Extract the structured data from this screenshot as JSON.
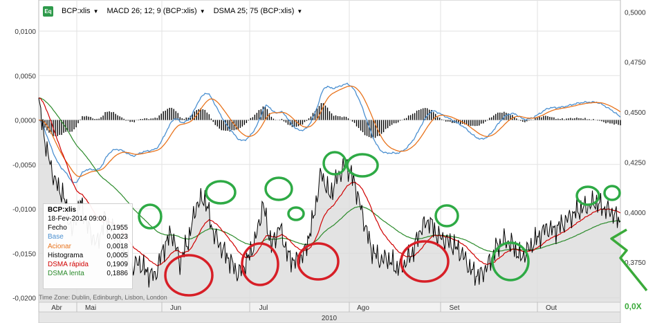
{
  "toolbar": {
    "logo": "Eq",
    "items": [
      {
        "label": "BCP:xlis"
      },
      {
        "label": "MACD 26; 12; 9 (BCP:xlis)"
      },
      {
        "label": "DSMA 25; 75 (BCP:xlis)"
      }
    ]
  },
  "legend": {
    "title": "BCP:xlis",
    "date": "18-Fev-2014 09:00",
    "rows": [
      {
        "label": "Fecho",
        "value": "0,1955",
        "color": "#000000"
      },
      {
        "label": "Base",
        "value": "0,0023",
        "color": "#4a8fd0"
      },
      {
        "label": "Acionar",
        "value": "0,0018",
        "color": "#e8731c"
      },
      {
        "label": "Histograma",
        "value": "0,0005",
        "color": "#000000"
      },
      {
        "label": "DSMA rápida",
        "value": "0,1909",
        "color": "#d00000"
      },
      {
        "label": "DSMA lenta",
        "value": "0,1886",
        "color": "#2a8a2a"
      }
    ]
  },
  "timezone": "Time Zone: Dublin, Edinburgh, Lisbon, London",
  "annotation": "0,0X",
  "chart_data": {
    "type": "line",
    "left_axis": {
      "ticks": [
        "0,0100",
        "0,0050",
        "0,0000",
        "-0,0050",
        "-0,0100",
        "-0,0150",
        "-0,0200"
      ],
      "ylim": [
        -0.0205,
        0.0135
      ]
    },
    "right_axis": {
      "ticks": [
        "0,5000",
        "0,4750",
        "0,4500",
        "0,4250",
        "0,4000",
        "0,3750"
      ],
      "ylim": [
        0.355,
        0.506
      ]
    },
    "x_axis": {
      "months": [
        "Abr",
        "Mai",
        "Jun",
        "Jul",
        "Ago",
        "Set",
        "Out"
      ],
      "year": "2010"
    },
    "series_price": {
      "name": "Fecho",
      "points": [
        [
          0.0,
          0.455
        ],
        [
          0.02,
          0.43
        ],
        [
          0.04,
          0.415
        ],
        [
          0.06,
          0.408
        ],
        [
          0.08,
          0.39
        ],
        [
          0.1,
          0.405
        ],
        [
          0.12,
          0.392
        ],
        [
          0.14,
          0.384
        ],
        [
          0.16,
          0.397
        ],
        [
          0.18,
          0.39
        ],
        [
          0.2,
          0.381
        ],
        [
          0.22,
          0.372
        ],
        [
          0.24,
          0.375
        ],
        [
          0.26,
          0.37
        ],
        [
          0.28,
          0.368
        ],
        [
          0.3,
          0.382
        ],
        [
          0.32,
          0.39
        ],
        [
          0.34,
          0.375
        ],
        [
          0.36,
          0.386
        ],
        [
          0.38,
          0.404
        ],
        [
          0.4,
          0.407
        ],
        [
          0.42,
          0.39
        ],
        [
          0.44,
          0.382
        ],
        [
          0.46,
          0.376
        ],
        [
          0.48,
          0.369
        ],
        [
          0.5,
          0.375
        ],
        [
          0.52,
          0.385
        ],
        [
          0.54,
          0.404
        ],
        [
          0.56,
          0.383
        ],
        [
          0.58,
          0.393
        ],
        [
          0.6,
          0.378
        ],
        [
          0.62,
          0.375
        ],
        [
          0.64,
          0.38
        ],
        [
          0.66,
          0.396
        ],
        [
          0.68,
          0.42
        ],
        [
          0.7,
          0.408
        ],
        [
          0.72,
          0.418
        ],
        [
          0.74,
          0.424
        ],
        [
          0.76,
          0.415
        ],
        [
          0.78,
          0.398
        ],
        [
          0.8,
          0.382
        ],
        [
          0.82,
          0.376
        ],
        [
          0.84,
          0.377
        ],
        [
          0.86,
          0.372
        ],
        [
          0.88,
          0.374
        ],
        [
          0.9,
          0.38
        ],
        [
          0.92,
          0.392
        ],
        [
          0.94,
          0.396
        ],
        [
          0.96,
          0.388
        ],
        [
          0.98,
          0.386
        ],
        [
          1.0,
          0.383
        ],
        [
          1.02,
          0.379
        ],
        [
          1.04,
          0.371
        ],
        [
          1.06,
          0.368
        ],
        [
          1.08,
          0.373
        ],
        [
          1.1,
          0.382
        ],
        [
          1.12,
          0.386
        ],
        [
          1.14,
          0.384
        ],
        [
          1.16,
          0.377
        ],
        [
          1.18,
          0.382
        ],
        [
          1.2,
          0.387
        ],
        [
          1.22,
          0.392
        ],
        [
          1.24,
          0.391
        ],
        [
          1.26,
          0.394
        ],
        [
          1.28,
          0.398
        ],
        [
          1.3,
          0.401
        ],
        [
          1.32,
          0.403
        ],
        [
          1.34,
          0.405
        ],
        [
          1.36,
          0.402
        ],
        [
          1.38,
          0.4
        ],
        [
          1.4,
          0.395
        ]
      ]
    },
    "dsma_fast": {
      "name": "DSMA rápida"
    },
    "dsma_slow": {
      "name": "DSMA lenta"
    }
  },
  "colors": {
    "price": "#000000",
    "area": "#d9d9d9",
    "macd": "#4a8fd0",
    "signal": "#e8731c",
    "histogram": "#000000",
    "dsma_fast": "#d00000",
    "dsma_slow": "#2a8a2a",
    "circle_green": "#2eaa45",
    "circle_red": "#d71f27",
    "grid": "#e2e2e2"
  }
}
